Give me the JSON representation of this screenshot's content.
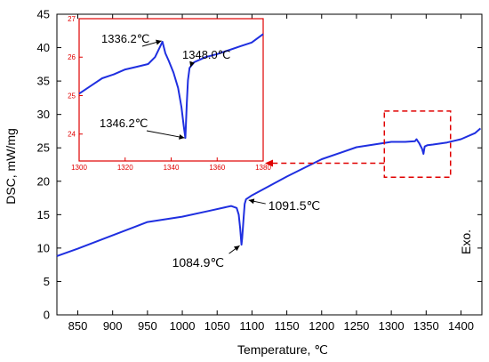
{
  "chart_data": {
    "type": "line",
    "colors": {
      "series": "#1f2fe0",
      "highlight": "#e00000"
    },
    "main": {
      "xlabel": "Temperature, ℃",
      "ylabel": "DSC, mW/mg",
      "xlim": [
        820,
        1430
      ],
      "ylim": [
        0,
        45
      ],
      "xticks": [
        850,
        900,
        950,
        1000,
        1050,
        1100,
        1150,
        1200,
        1250,
        1300,
        1350,
        1400
      ],
      "yticks": [
        0,
        5,
        10,
        15,
        20,
        25,
        30,
        35,
        40,
        45
      ],
      "series": [
        {
          "x": [
            820,
            850,
            900,
            950,
            1000,
            1040,
            1070,
            1078,
            1081,
            1083,
            1084.9,
            1086,
            1088,
            1089.5,
            1091.5,
            1100,
            1150,
            1200,
            1250,
            1300,
            1320,
            1334,
            1336.2,
            1338,
            1340,
            1342,
            1344,
            1346.2,
            1347,
            1348,
            1352,
            1360,
            1380,
            1400,
            1420,
            1428
          ],
          "y": [
            8.8,
            9.9,
            11.9,
            13.9,
            14.7,
            15.6,
            16.3,
            16.0,
            15.0,
            13.0,
            10.5,
            11.5,
            14.5,
            16.6,
            17.3,
            17.9,
            20.7,
            23.3,
            25.1,
            25.9,
            25.9,
            26.0,
            26.3,
            26.0,
            25.7,
            25.3,
            24.9,
            24.1,
            24.7,
            25.2,
            25.4,
            25.5,
            25.8,
            26.3,
            27.2,
            27.9
          ]
        }
      ],
      "annotations": [
        {
          "text": "1084.9℃",
          "x": 1084.9,
          "y": 10.5
        },
        {
          "text": "1091.5℃",
          "x": 1091.5,
          "y": 17.3
        }
      ],
      "side_label": "Exo."
    },
    "inset": {
      "xlim": [
        1300,
        1380
      ],
      "ylim": [
        23.3,
        27
      ],
      "xticks": [
        1300,
        1320,
        1340,
        1360,
        1380
      ],
      "yticks": [
        24,
        25,
        26,
        27
      ],
      "highlight_box": {
        "x": [
          1290,
          1385
        ],
        "y": [
          20.6,
          30.5
        ]
      },
      "series": [
        {
          "x": [
            1300,
            1305,
            1310,
            1315,
            1320,
            1325,
            1330,
            1333,
            1335,
            1336.2,
            1337.5,
            1339,
            1341,
            1343,
            1344.5,
            1345.5,
            1346.2,
            1346.8,
            1347.3,
            1348,
            1350,
            1355,
            1360,
            1365,
            1370,
            1375,
            1380
          ],
          "y": [
            25.05,
            25.25,
            25.45,
            25.55,
            25.68,
            25.75,
            25.82,
            26.0,
            26.25,
            26.4,
            26.1,
            25.9,
            25.6,
            25.2,
            24.7,
            24.2,
            23.9,
            24.8,
            25.4,
            25.72,
            25.87,
            26.0,
            26.08,
            26.18,
            26.28,
            26.38,
            26.6
          ]
        }
      ],
      "annotations": [
        {
          "text": "1336.2℃",
          "x": 1336.2,
          "y": 26.4
        },
        {
          "text": "1348.0℃",
          "x": 1348.0,
          "y": 25.72
        },
        {
          "text": "1346.2℃",
          "x": 1346.2,
          "y": 23.9
        }
      ]
    }
  }
}
